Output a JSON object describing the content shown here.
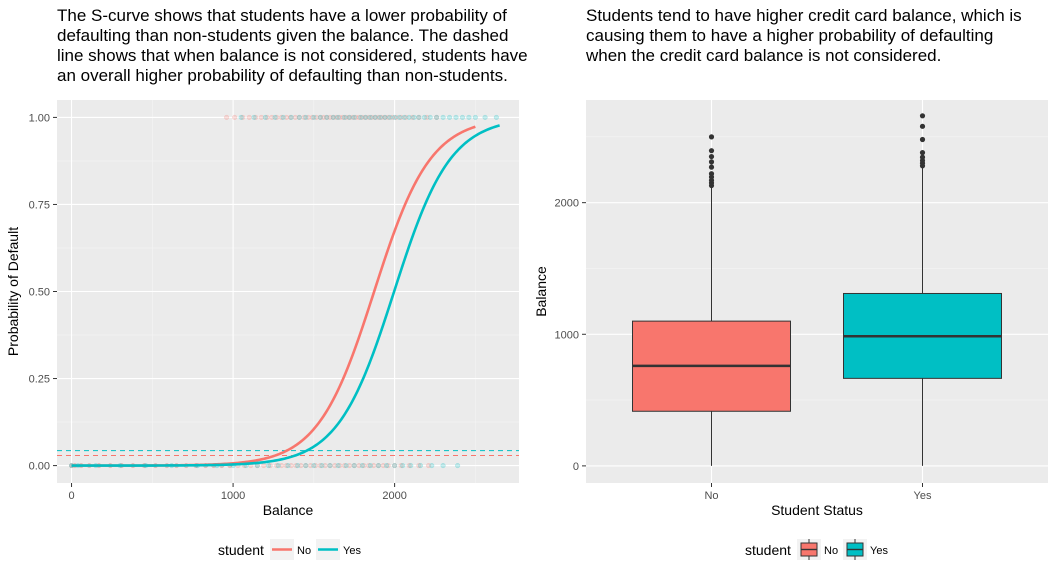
{
  "chart_data": [
    {
      "type": "scatter",
      "title": "The S-curve shows that students have a lower probability of defaulting than non-students given the balance. The dashed line shows that when balance is not considered, students have an overall higher probability of defaulting than non-students.",
      "xlabel": "Balance",
      "ylabel": "Probability of Default",
      "xlim": [
        -90,
        2770
      ],
      "ylim": [
        -0.05,
        1.05
      ],
      "x_ticks": [
        0,
        1000,
        2000
      ],
      "x_tick_labels": [
        "0",
        "1000",
        "2000"
      ],
      "y_ticks": [
        0,
        0.25,
        0.5,
        0.75,
        1
      ],
      "y_tick_labels": [
        "0.00",
        "0.25",
        "0.50",
        "0.75",
        "1.00"
      ],
      "grid": true,
      "legend": {
        "title": "student",
        "position": "bottom",
        "entries": [
          "No",
          "Yes"
        ]
      },
      "series": [
        {
          "name": "No",
          "color": "#F8766D",
          "curve": {
            "x_range": [
              0,
              2500
            ],
            "intercept": -10.7495,
            "slope": 0.005738
          },
          "overall_rate": 0.029
        },
        {
          "name": "Yes",
          "color": "#00BFC4",
          "curve": {
            "x_range": [
              0,
              2654
            ],
            "intercept": -11.4585,
            "slope": 0.005738
          },
          "overall_rate": 0.043
        }
      ],
      "points": {
        "default_yes": {
          "No": [
            960,
            1010,
            1060,
            1100,
            1140,
            1175,
            1210,
            1240,
            1270,
            1300,
            1330,
            1355,
            1385,
            1410,
            1440,
            1465,
            1490,
            1515,
            1540,
            1560,
            1580,
            1600,
            1620,
            1640,
            1660,
            1680,
            1700,
            1720,
            1740,
            1760,
            1780,
            1800,
            1820,
            1840,
            1860,
            1880,
            1900,
            1920,
            1940,
            1960,
            1985,
            2010,
            2040,
            2070,
            2110,
            2150,
            2200,
            2260
          ],
          "Yes": [
            1050,
            1130,
            1200,
            1260,
            1310,
            1360,
            1410,
            1450,
            1500,
            1540,
            1580,
            1620,
            1650,
            1690,
            1720,
            1750,
            1790,
            1820,
            1850,
            1880,
            1910,
            1940,
            1970,
            2000,
            2030,
            2060,
            2090,
            2120,
            2150,
            2185,
            2220,
            2260,
            2300,
            2340,
            2380,
            2420,
            2460,
            2500,
            2560,
            2630
          ]
        },
        "default_no": {
          "No": [
            0,
            20,
            60,
            110,
            170,
            240,
            310,
            380,
            450,
            520,
            590,
            650,
            710,
            770,
            830,
            880,
            930,
            980,
            1030,
            1070,
            1110,
            1150,
            1190,
            1230,
            1270,
            1300,
            1330,
            1360,
            1390,
            1420,
            1450,
            1480,
            1510,
            1540,
            1570,
            1600,
            1630,
            1660,
            1690,
            1720,
            1750,
            1780,
            1810,
            1840,
            1870,
            1900,
            1930,
            1960,
            2000,
            2040,
            2090,
            2150,
            2210
          ],
          "Yes": [
            0,
            40,
            150,
            300,
            460,
            620,
            780,
            900,
            1000,
            1080,
            1150,
            1220,
            1280,
            1340,
            1400,
            1450,
            1500,
            1550,
            1600,
            1650,
            1700,
            1750,
            1800,
            1850,
            1900,
            1950,
            2000,
            2050,
            2100,
            2160,
            2230,
            2300,
            2390
          ]
        }
      }
    },
    {
      "type": "box",
      "title": "Students tend to have higher credit card balance, which is causing them to have a higher probability of defaulting when the credit card balance is not considered.",
      "xlabel": "Student Status",
      "ylabel": "Balance",
      "categories": [
        "No",
        "Yes"
      ],
      "ylim": [
        -130,
        2780
      ],
      "y_ticks": [
        0,
        1000,
        2000
      ],
      "y_tick_labels": [
        "0",
        "1000",
        "2000"
      ],
      "grid": true,
      "legend": {
        "title": "student",
        "position": "bottom",
        "entries": [
          "No",
          "Yes"
        ]
      },
      "boxes": [
        {
          "name": "No",
          "color": "#F8766D",
          "min": 0,
          "q1": 415,
          "median": 760,
          "q3": 1100,
          "max": 2115,
          "outliers": [
            2130,
            2150,
            2170,
            2195,
            2220,
            2270,
            2310,
            2350,
            2395,
            2500
          ]
        },
        {
          "name": "Yes",
          "color": "#00BFC4",
          "min": 0,
          "q1": 665,
          "median": 985,
          "q3": 1310,
          "max": 2265,
          "outliers": [
            2280,
            2300,
            2320,
            2345,
            2380,
            2480,
            2580,
            2660
          ]
        }
      ]
    }
  ]
}
